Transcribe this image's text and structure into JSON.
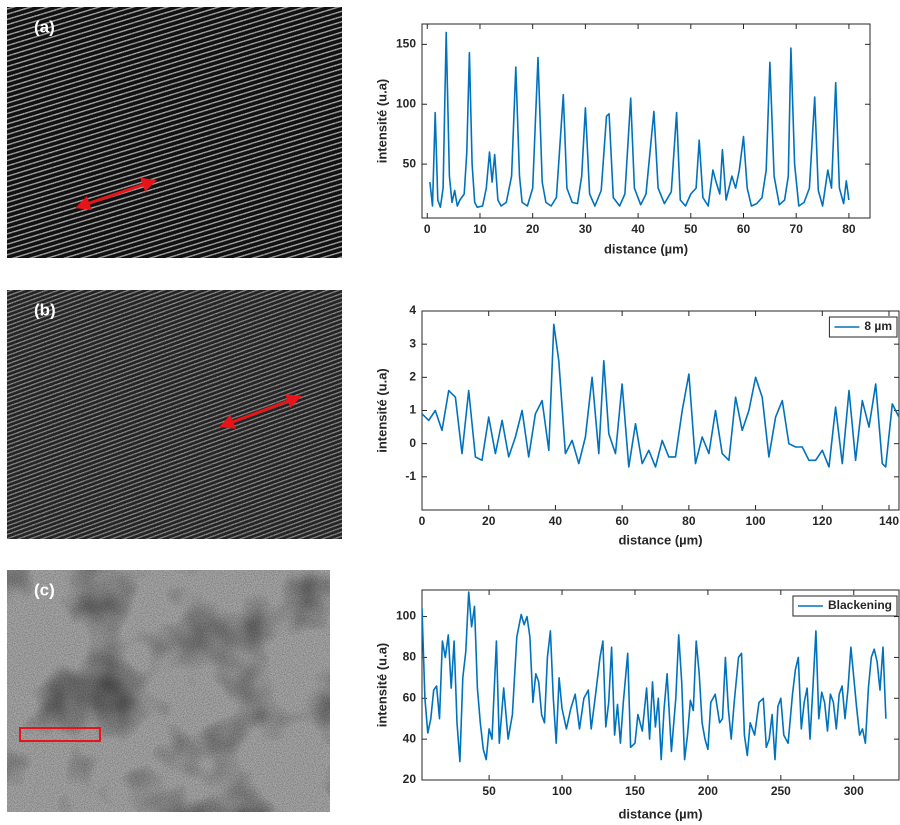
{
  "chart_data": [
    {
      "type": "line",
      "panel": "(a)",
      "xlabel": "distance (µm)",
      "ylabel": "intensité (u.a)",
      "xlim": [
        -1,
        84
      ],
      "ylim": [
        5,
        167
      ],
      "xticks": [
        0,
        10,
        20,
        30,
        40,
        50,
        60,
        70,
        80
      ],
      "yticks": [
        50,
        100,
        150
      ],
      "series": [
        {
          "color": "#0072bd",
          "x": [
            0.5,
            1,
            1.5,
            2,
            2.5,
            3,
            3.6,
            4.2,
            4.7,
            5.2,
            5.7,
            6.2,
            7,
            7.5,
            8,
            8.5,
            9,
            9.5,
            10.5,
            11.2,
            11.8,
            12.3,
            12.8,
            13.4,
            14,
            15,
            16,
            16.8,
            17.5,
            18,
            19,
            20,
            21,
            21.8,
            22.5,
            23.5,
            24.5,
            25.8,
            26.5,
            27.5,
            28.5,
            29.3,
            30,
            30.8,
            31.8,
            33,
            34,
            34.5,
            35.3,
            36.5,
            37.5,
            38.6,
            39.3,
            40.5,
            41.5,
            43,
            43.8,
            45,
            46.3,
            47.3,
            48,
            49,
            50,
            51,
            51.6,
            52.3,
            53.3,
            54.2,
            54.8,
            55.5,
            56,
            56.7,
            57.8,
            58.5,
            59.2,
            60,
            60.7,
            61.5,
            62.5,
            63.5,
            64.3,
            65,
            65.8,
            66.8,
            67.8,
            68.5,
            69,
            69.7,
            70.5,
            71.5,
            72.5,
            73.5,
            74.2,
            75,
            76,
            76.7,
            77.5,
            78.2,
            79,
            79.5,
            80
          ],
          "values": [
            35,
            15,
            93,
            20,
            14,
            30,
            160,
            40,
            18,
            28,
            15,
            20,
            25,
            60,
            143,
            50,
            18,
            14,
            15,
            30,
            60,
            35,
            58,
            20,
            15,
            18,
            40,
            131,
            40,
            18,
            15,
            30,
            139,
            35,
            18,
            15,
            22,
            108,
            30,
            18,
            17,
            40,
            97,
            25,
            15,
            28,
            90,
            92,
            22,
            15,
            25,
            105,
            30,
            16,
            25,
            94,
            30,
            17,
            27,
            93,
            20,
            15,
            25,
            30,
            70,
            22,
            15,
            45,
            35,
            25,
            62,
            20,
            40,
            30,
            45,
            73,
            30,
            15,
            17,
            22,
            45,
            135,
            40,
            16,
            20,
            40,
            147,
            50,
            15,
            18,
            30,
            106,
            28,
            15,
            45,
            30,
            118,
            30,
            17,
            36,
            20
          ]
        }
      ]
    },
    {
      "type": "line",
      "panel": "(b)",
      "xlabel": "distance (µm)",
      "ylabel": "intensité (u.a)",
      "xlim": [
        0,
        143
      ],
      "ylim": [
        -2,
        4
      ],
      "xticks": [
        0,
        20,
        40,
        60,
        80,
        100,
        120,
        140
      ],
      "yticks": [
        -1,
        0,
        1,
        2,
        3,
        4
      ],
      "legend": "upper right",
      "series": [
        {
          "name": "8 µm",
          "color": "#0072bd",
          "x": [
            0,
            2,
            4,
            6,
            8,
            10,
            12,
            14,
            16,
            18,
            20,
            22,
            24,
            26,
            28,
            30,
            32,
            34,
            36,
            38,
            39.5,
            41,
            43,
            45,
            47,
            49,
            51,
            53,
            54.5,
            56,
            58,
            60,
            62,
            64,
            66,
            68,
            70,
            72,
            74,
            76,
            78,
            80,
            82,
            84,
            86,
            88,
            90,
            92,
            94,
            96,
            98,
            100,
            102,
            104,
            106,
            108,
            110,
            112,
            114,
            116,
            118,
            120,
            122,
            124,
            126,
            128,
            130,
            132,
            134,
            136,
            138,
            139,
            141,
            143
          ],
          "values": [
            0.9,
            0.7,
            1.0,
            0.4,
            1.6,
            1.4,
            -0.3,
            1.6,
            -0.4,
            -0.5,
            0.8,
            -0.3,
            0.7,
            -0.4,
            0.2,
            1.0,
            -0.4,
            0.9,
            1.3,
            -0.2,
            3.6,
            2.5,
            -0.3,
            0.1,
            -0.6,
            0.2,
            2.0,
            -0.3,
            2.5,
            0.3,
            -0.3,
            1.8,
            -0.7,
            0.6,
            -0.6,
            -0.2,
            -0.7,
            0.1,
            -0.4,
            -0.4,
            1.0,
            2.1,
            -0.6,
            0.2,
            -0.3,
            1.0,
            -0.3,
            -0.5,
            1.4,
            0.4,
            1.0,
            2.0,
            1.4,
            -0.4,
            0.8,
            1.3,
            0.0,
            -0.1,
            -0.1,
            -0.5,
            -0.5,
            -0.2,
            -0.7,
            1.1,
            -0.6,
            1.6,
            -0.5,
            1.3,
            0.5,
            1.8,
            -0.6,
            -0.7,
            1.2,
            0.8
          ]
        }
      ]
    },
    {
      "type": "line",
      "panel": "(c)",
      "xlabel": "distance (µm)",
      "ylabel": "intensité (u.a)",
      "xlim": [
        4,
        331
      ],
      "ylim": [
        20,
        113
      ],
      "xticks": [
        50,
        100,
        150,
        200,
        250,
        300
      ],
      "yticks": [
        20,
        40,
        60,
        80,
        100
      ],
      "legend": "upper right",
      "series": [
        {
          "name": "Blackening",
          "color": "#0072bd",
          "x": [
            4,
            6,
            8,
            10,
            12,
            14,
            16,
            18,
            20,
            22,
            24,
            26,
            28,
            30,
            32,
            34,
            36,
            38,
            40,
            42,
            44,
            46,
            48,
            50,
            52,
            55,
            57,
            60,
            63,
            66,
            69,
            72,
            74,
            76,
            78,
            80,
            82,
            84,
            86,
            88,
            90,
            92,
            94,
            96,
            98,
            100,
            103,
            106,
            109,
            112,
            115,
            118,
            120,
            123,
            126,
            128,
            130,
            132,
            134,
            136,
            138,
            140,
            142,
            145,
            147,
            150,
            152,
            155,
            158,
            160,
            162,
            164,
            166,
            168,
            170,
            172,
            175,
            178,
            180,
            182,
            184,
            186,
            188,
            190,
            192,
            194,
            196,
            198,
            200,
            202,
            205,
            208,
            210,
            212,
            214,
            216,
            218,
            221,
            223,
            225,
            227,
            229,
            232,
            235,
            238,
            240,
            242,
            244,
            246,
            248,
            250,
            252,
            255,
            258,
            260,
            262,
            264,
            266,
            268,
            270,
            272,
            274,
            276,
            278,
            280,
            282,
            284,
            286,
            288,
            290,
            292,
            294,
            296,
            298,
            300,
            302,
            304,
            306,
            308,
            310,
            312,
            314,
            316,
            318,
            320,
            322
          ],
          "values": [
            104,
            60,
            43,
            50,
            64,
            66,
            50,
            88,
            80,
            91,
            65,
            88,
            48,
            29,
            70,
            83,
            112,
            95,
            105,
            65,
            48,
            35,
            30,
            45,
            40,
            88,
            38,
            65,
            40,
            52,
            90,
            101,
            96,
            100,
            90,
            58,
            72,
            68,
            52,
            48,
            80,
            93,
            60,
            38,
            70,
            55,
            45,
            55,
            62,
            45,
            60,
            64,
            45,
            62,
            80,
            88,
            46,
            58,
            85,
            42,
            57,
            38,
            58,
            82,
            36,
            38,
            52,
            44,
            65,
            40,
            68,
            46,
            60,
            30,
            55,
            72,
            34,
            60,
            91,
            68,
            30,
            42,
            59,
            54,
            88,
            72,
            48,
            40,
            35,
            58,
            62,
            48,
            50,
            80,
            55,
            40,
            58,
            80,
            82,
            42,
            32,
            48,
            42,
            58,
            60,
            36,
            40,
            52,
            30,
            56,
            60,
            42,
            38,
            62,
            74,
            80,
            45,
            58,
            65,
            40,
            65,
            93,
            50,
            63,
            58,
            44,
            62,
            58,
            45,
            62,
            66,
            50,
            64,
            85,
            70,
            55,
            42,
            45,
            38,
            65,
            80,
            84,
            78,
            64,
            85,
            50
          ]
        }
      ]
    }
  ]
}
